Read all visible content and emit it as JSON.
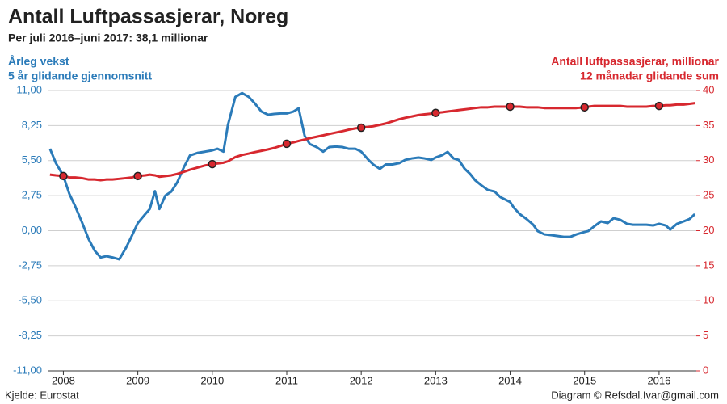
{
  "chart_data": {
    "type": "line",
    "title": "Antall Luftpassasjerar, Noreg",
    "subtitle": "Per juli 2016–juni 2017: 38,1 millionar",
    "y_label": [
      "Årleg vekst",
      "5 år glidande gjennomsnitt"
    ],
    "y2_label": [
      "Antall luftpassasjerar, millionar",
      "12 månadar glidande sum"
    ],
    "source": "Kjelde: Eurostat",
    "credit": "Diagram © Refsdal.Ivar@gmail.com",
    "x": [
      2007.82,
      2007.9,
      2008,
      2008.08,
      2008.16,
      2008.25,
      2008.34,
      2008.42,
      2008.5,
      2008.58,
      2008.66,
      2008.75,
      2008.84,
      2008.92,
      2009,
      2009.1,
      2009.16,
      2009.23,
      2009.29,
      2009.37,
      2009.45,
      2009.53,
      2009.62,
      2009.7,
      2009.8,
      2009.9,
      2010,
      2010.07,
      2010.15,
      2010.21,
      2010.31,
      2010.4,
      2010.49,
      2010.57,
      2010.66,
      2010.75,
      2010.83,
      2010.92,
      2011,
      2011.09,
      2011.16,
      2011.24,
      2011.31,
      2011.4,
      2011.49,
      2011.57,
      2011.66,
      2011.75,
      2011.83,
      2011.92,
      2012,
      2012.09,
      2012.16,
      2012.25,
      2012.33,
      2012.42,
      2012.51,
      2012.59,
      2012.68,
      2012.77,
      2012.85,
      2012.94,
      2013,
      2013.09,
      2013.16,
      2013.24,
      2013.31,
      2013.39,
      2013.46,
      2013.53,
      2013.61,
      2013.7,
      2013.79,
      2013.87,
      2014,
      2014.05,
      2014.13,
      2014.22,
      2014.31,
      2014.37,
      2014.46,
      2014.55,
      2014.63,
      2014.72,
      2014.81,
      2014.89,
      2015,
      2015.05,
      2015.13,
      2015.22,
      2015.31,
      2015.39,
      2015.48,
      2015.57,
      2015.65,
      2015.74,
      2015.83,
      2015.92,
      2016,
      2016.09,
      2016.15,
      2016.24,
      2016.33,
      2016.41,
      2016.48
    ],
    "series": [
      {
        "color": "#2b7bb9",
        "axis": "y",
        "values": [
          6.43,
          5.3,
          4.3,
          2.9,
          1.9,
          0.66,
          -0.67,
          -1.56,
          -2.1,
          -2.0,
          -2.1,
          -2.25,
          -1.36,
          -0.4,
          0.6,
          1.3,
          1.7,
          3.1,
          1.7,
          2.76,
          3.07,
          3.8,
          5.0,
          5.9,
          6.1,
          6.2,
          6.3,
          6.43,
          6.2,
          8.3,
          10.5,
          10.8,
          10.5,
          10.0,
          9.35,
          9.1,
          9.16,
          9.2,
          9.2,
          9.35,
          9.6,
          7.45,
          6.8,
          6.56,
          6.2,
          6.56,
          6.6,
          6.56,
          6.43,
          6.43,
          6.2,
          5.6,
          5.2,
          4.85,
          5.2,
          5.2,
          5.3,
          5.55,
          5.67,
          5.74,
          5.67,
          5.55,
          5.74,
          5.93,
          6.18,
          5.67,
          5.55,
          4.85,
          4.47,
          3.96,
          3.58,
          3.2,
          3.07,
          2.63,
          2.25,
          1.8,
          1.3,
          0.92,
          0.47,
          -0.03,
          -0.29,
          -0.35,
          -0.41,
          -0.48,
          -0.48,
          -0.29,
          -0.1,
          -0.03,
          0.35,
          0.73,
          0.6,
          0.98,
          0.85,
          0.54,
          0.47,
          0.47,
          0.47,
          0.41,
          0.54,
          0.41,
          0.09,
          0.54,
          0.73,
          0.92,
          1.3
        ]
      },
      {
        "color": "#d7282f",
        "axis": "y2",
        "markers": true,
        "values": [
          28.0,
          27.9,
          27.8,
          27.6,
          27.6,
          27.5,
          27.3,
          27.3,
          27.2,
          27.3,
          27.3,
          27.4,
          27.5,
          27.6,
          27.8,
          27.9,
          28.0,
          27.9,
          27.7,
          27.8,
          27.9,
          28.1,
          28.4,
          28.7,
          29.0,
          29.3,
          29.5,
          29.6,
          29.7,
          29.9,
          30.5,
          30.8,
          31.0,
          31.2,
          31.4,
          31.6,
          31.8,
          32.1,
          32.4,
          32.6,
          32.8,
          33.0,
          33.2,
          33.4,
          33.6,
          33.8,
          34.0,
          34.2,
          34.4,
          34.6,
          34.7,
          34.8,
          34.9,
          35.1,
          35.3,
          35.6,
          35.9,
          36.1,
          36.3,
          36.5,
          36.6,
          36.7,
          36.8,
          36.9,
          37.0,
          37.1,
          37.2,
          37.3,
          37.4,
          37.5,
          37.6,
          37.6,
          37.7,
          37.7,
          37.7,
          37.7,
          37.7,
          37.6,
          37.6,
          37.6,
          37.5,
          37.5,
          37.5,
          37.5,
          37.5,
          37.5,
          37.6,
          37.7,
          37.8,
          37.8,
          37.8,
          37.8,
          37.8,
          37.7,
          37.7,
          37.7,
          37.7,
          37.8,
          37.8,
          37.9,
          37.9,
          38.0,
          38.0,
          38.1,
          38.2
        ]
      }
    ],
    "xlim": [
      2007.8,
      2016.5
    ],
    "xticks": [
      2008,
      2009,
      2010,
      2011,
      2012,
      2013,
      2014,
      2015,
      2016
    ],
    "ylim": [
      -11,
      11
    ],
    "yticks": [
      {
        "value": 11,
        "label": "11,00"
      },
      {
        "value": 8.25,
        "label": "8,25"
      },
      {
        "value": 5.5,
        "label": "5,50"
      },
      {
        "value": 2.75,
        "label": "2,75"
      },
      {
        "value": 0,
        "label": "0,00"
      },
      {
        "value": -2.75,
        "label": "-2,75"
      },
      {
        "value": -5.5,
        "label": "-5,50"
      },
      {
        "value": -8.25,
        "label": "-8,25"
      },
      {
        "value": -11,
        "label": "-11,00"
      }
    ],
    "y2lim": [
      0,
      40
    ],
    "y2ticks": [
      0,
      5,
      10,
      15,
      20,
      25,
      30,
      35,
      40
    ],
    "grid": true
  }
}
